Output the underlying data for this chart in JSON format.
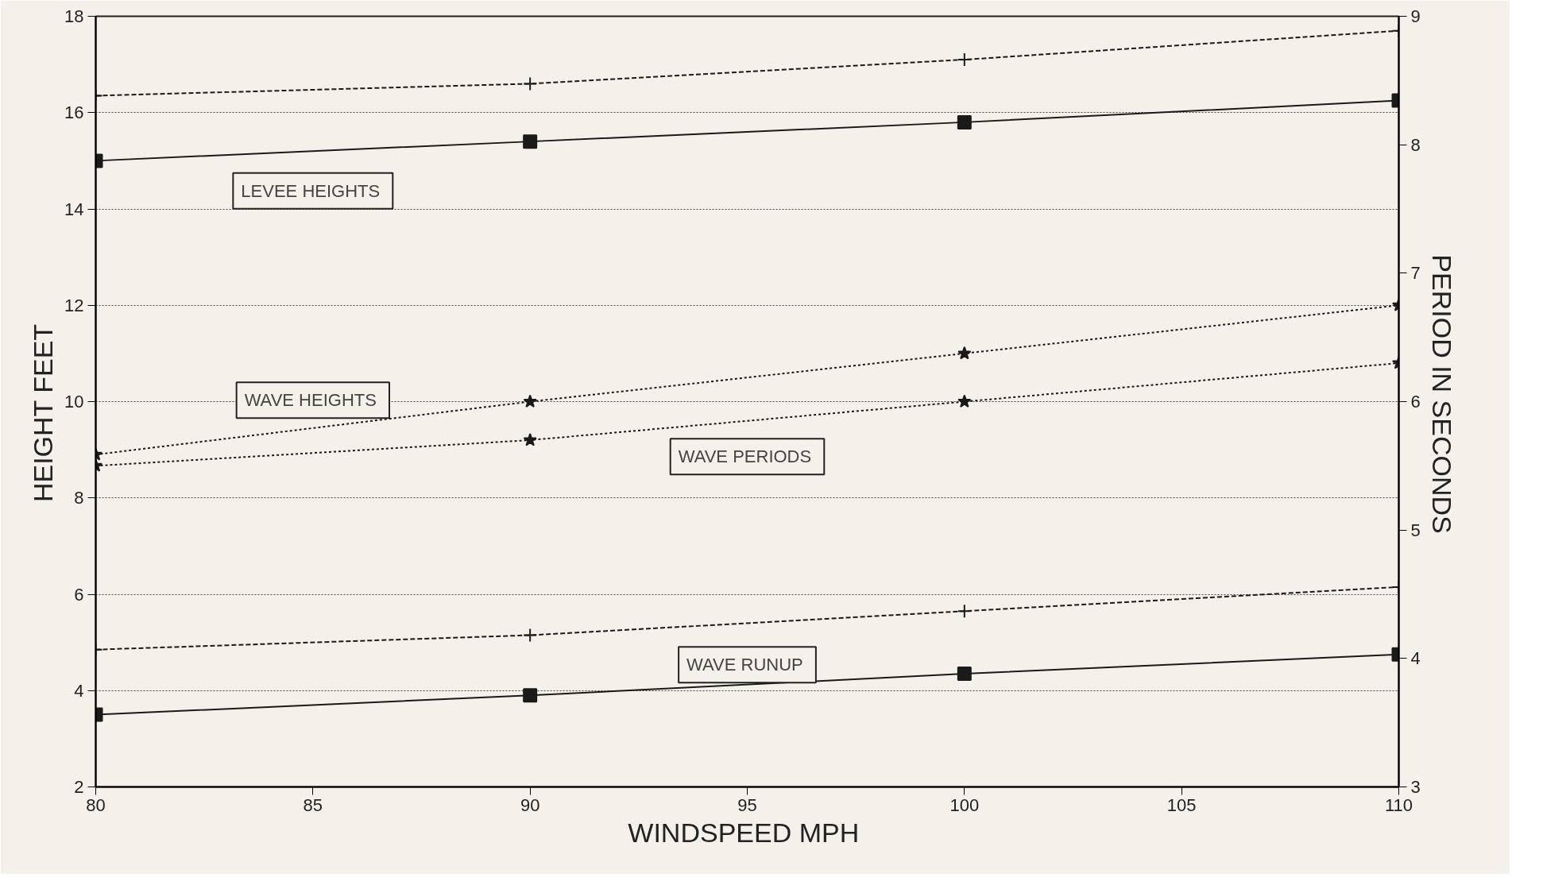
{
  "chart_data": {
    "type": "line",
    "xlabel": "WINDSPEED  MPH",
    "ylabel": "HEIGHT    FEET",
    "y2label": "PERIOD  IN  SECONDS",
    "x": [
      80,
      90,
      100,
      110
    ],
    "xlim": [
      80,
      110
    ],
    "xticks": [
      80,
      85,
      90,
      95,
      100,
      105,
      110
    ],
    "ylim": [
      2,
      18
    ],
    "yticks": [
      2,
      4,
      6,
      8,
      10,
      12,
      14,
      16,
      18
    ],
    "y2lim": [
      3,
      9
    ],
    "y2ticks": [
      3,
      4,
      5,
      6,
      7,
      8,
      9
    ],
    "grid": "y",
    "series": [
      {
        "name": "LEVEE  HEIGHTS",
        "color": "#1a1a1a",
        "values": [
          15.0,
          15.4,
          15.8,
          16.25
        ],
        "marker": "square",
        "line_style": "solid"
      },
      {
        "color": "#1a1a1a",
        "values": [
          16.35,
          16.6,
          17.1,
          17.7
        ],
        "marker": "cross",
        "line_style": "dashed"
      },
      {
        "name": "WAVE  HEIGHTS",
        "color": "#1a1a1a",
        "values": [
          8.9,
          10.0,
          11.0,
          12.0
        ],
        "marker": "star",
        "line_style": "dotted"
      },
      {
        "name": "WAVE  PERIODS",
        "color": "#1a1a1a",
        "values": [
          5.5,
          5.7,
          6.0,
          6.3
        ],
        "marker": "star",
        "line_style": "dotted",
        "axis": "y2"
      },
      {
        "name": "WAVE  RUNUP",
        "color": "#1a1a1a",
        "values": [
          3.5,
          3.9,
          4.35,
          4.75
        ],
        "marker": "square",
        "line_style": "solid"
      },
      {
        "color": "#1a1a1a",
        "values": [
          4.85,
          5.15,
          5.65,
          6.15
        ],
        "marker": "cross",
        "line_style": "dashed"
      }
    ]
  }
}
